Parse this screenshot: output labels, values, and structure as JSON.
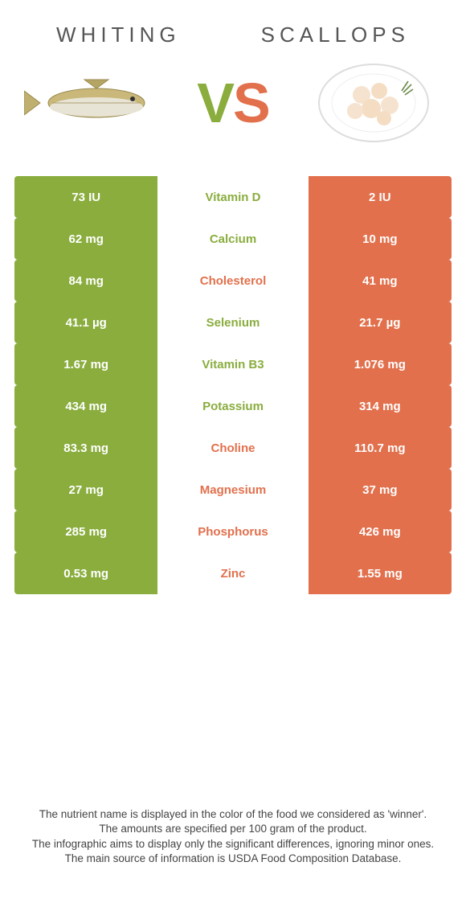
{
  "colors": {
    "green": "#8aad3e",
    "orange": "#e2704c",
    "text": "#555555",
    "footnote": "#444444"
  },
  "header": {
    "leftTitle": "WHITING",
    "rightTitle": "SCALLOPS",
    "vs_v": "V",
    "vs_s": "S"
  },
  "rows": [
    {
      "left": "73 IU",
      "label": "Vitamin D",
      "right": "2 IU",
      "winner": "left"
    },
    {
      "left": "62 mg",
      "label": "Calcium",
      "right": "10 mg",
      "winner": "left"
    },
    {
      "left": "84 mg",
      "label": "Cholesterol",
      "right": "41 mg",
      "winner": "right"
    },
    {
      "left": "41.1 µg",
      "label": "Selenium",
      "right": "21.7 µg",
      "winner": "left"
    },
    {
      "left": "1.67 mg",
      "label": "Vitamin B3",
      "right": "1.076 mg",
      "winner": "left"
    },
    {
      "left": "434 mg",
      "label": "Potassium",
      "right": "314 mg",
      "winner": "left"
    },
    {
      "left": "83.3 mg",
      "label": "Choline",
      "right": "110.7 mg",
      "winner": "right"
    },
    {
      "left": "27 mg",
      "label": "Magnesium",
      "right": "37 mg",
      "winner": "right"
    },
    {
      "left": "285 mg",
      "label": "Phosphorus",
      "right": "426 mg",
      "winner": "right"
    },
    {
      "left": "0.53 mg",
      "label": "Zinc",
      "right": "1.55 mg",
      "winner": "right"
    }
  ],
  "footnotes": [
    "The nutrient name is displayed in the color of the food we considered as 'winner'.",
    "The amounts are specified per 100 gram of the product.",
    "The infographic aims to display only the significant differences, ignoring minor ones.",
    "The main source of information is USDA Food Composition Database."
  ]
}
